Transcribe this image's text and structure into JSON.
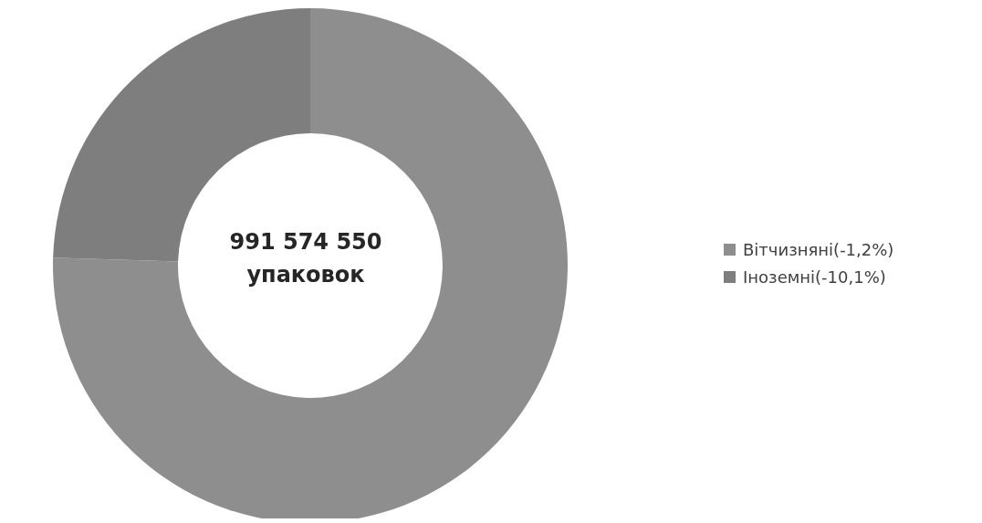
{
  "chart_data": {
    "type": "donut",
    "categories": [
      "Вітчизняні(-1,2%)",
      "Іноземні(-10,1%)"
    ],
    "values": [
      75.5,
      24.5
    ],
    "colors": [
      "#8e8e8e",
      "#7e7e7e"
    ],
    "annotations": [
      "991 574 550",
      "упаковок"
    ],
    "legend": "right"
  }
}
